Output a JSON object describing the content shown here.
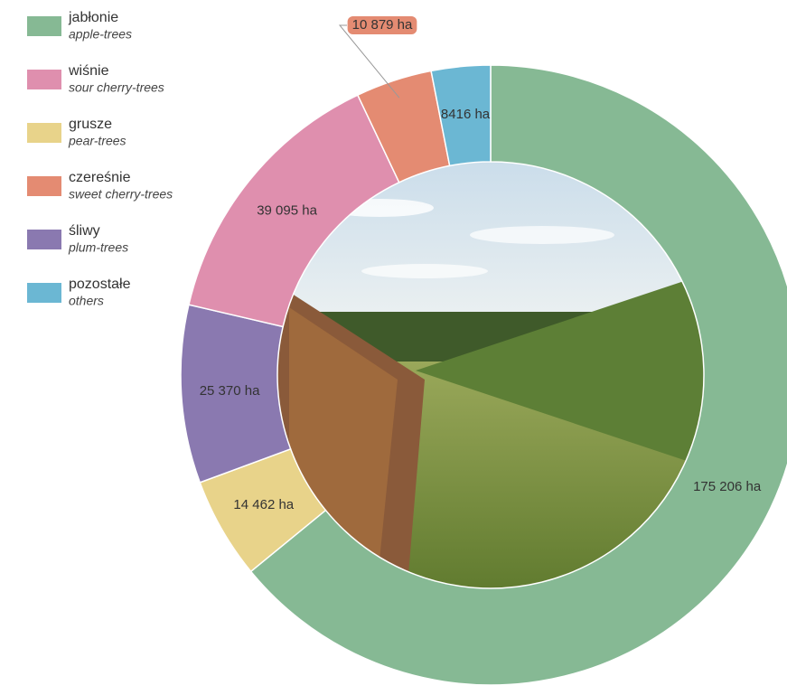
{
  "chart_data": {
    "type": "donut",
    "categories": [
      {
        "name": "jabłonie",
        "subname": "apple-trees"
      },
      {
        "name": "wiśnie",
        "subname": "sour cherry-trees"
      },
      {
        "name": "grusze",
        "subname": "pear-trees"
      },
      {
        "name": "czereśnie",
        "subname": "sweet cherry-trees"
      },
      {
        "name": "śliwy",
        "subname": "plum-trees"
      },
      {
        "name": "pozostałe",
        "subname": "others"
      }
    ],
    "values": [
      175206,
      39095,
      14462,
      10879,
      25370,
      8416
    ],
    "value_labels": [
      "175 206 ha",
      "39 095 ha",
      "14 462 ha",
      "10 879 ha",
      "25 370 ha",
      "8416 ha"
    ],
    "colors": [
      "#86b994",
      "#df8fae",
      "#e8d38a",
      "#e48b72",
      "#8a79b0",
      "#6bb7d3"
    ]
  }
}
